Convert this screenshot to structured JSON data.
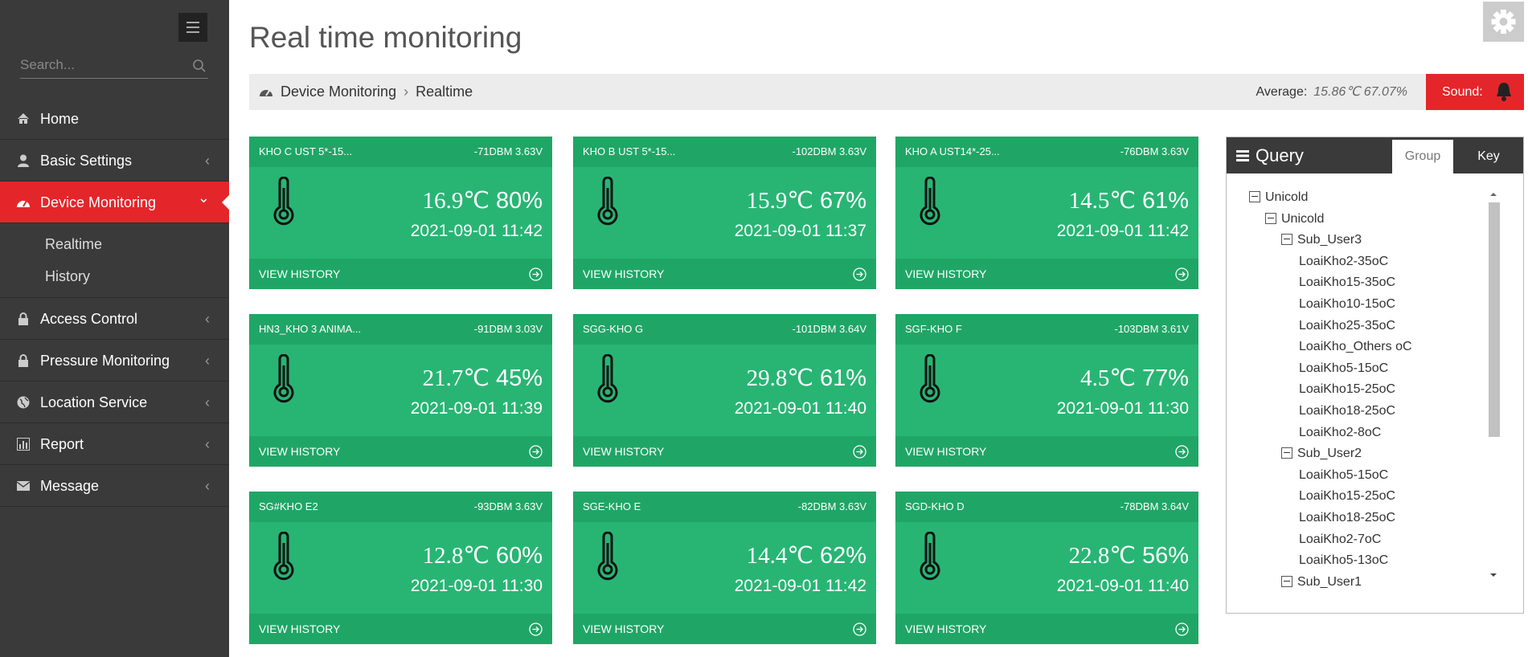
{
  "sidebar": {
    "search_placeholder": "Search...",
    "menu": [
      {
        "label": "Home",
        "icon": "home"
      },
      {
        "label": "Basic Settings",
        "icon": "user",
        "arrow": true
      },
      {
        "label": "Device Monitoring",
        "icon": "gauge",
        "active": true,
        "submenu": [
          "Realtime",
          "History"
        ]
      },
      {
        "label": "Access Control",
        "icon": "lock",
        "arrow": true
      },
      {
        "label": "Pressure Monitoring",
        "icon": "lock",
        "arrow": true
      },
      {
        "label": "Location Service",
        "icon": "globe",
        "arrow": true
      },
      {
        "label": "Report",
        "icon": "chart",
        "arrow": true
      },
      {
        "label": "Message",
        "icon": "mail",
        "arrow": true
      }
    ]
  },
  "header": {
    "title": "Real time monitoring"
  },
  "breadcrumb": {
    "items": [
      "Device Monitoring",
      "Realtime"
    ],
    "average_label": "Average:",
    "average_value": "15.86℃ 67.07%",
    "sound": "Sound:"
  },
  "cards": [
    {
      "name": "KHO C UST 5*-15...",
      "signal": "-71DBM 3.63V",
      "temp": "16.9℃",
      "humidity": "80%",
      "time": "2021-09-01 11:42",
      "link": "VIEW HISTORY"
    },
    {
      "name": "KHO B UST 5*-15...",
      "signal": "-102DBM 3.63V",
      "temp": "15.9℃",
      "humidity": "67%",
      "time": "2021-09-01 11:37",
      "link": "VIEW HISTORY"
    },
    {
      "name": "KHO A UST14*-25...",
      "signal": "-76DBM 3.63V",
      "temp": "14.5℃",
      "humidity": "61%",
      "time": "2021-09-01 11:42",
      "link": "VIEW HISTORY"
    },
    {
      "name": "HN3_KHO 3 ANIMA...",
      "signal": "-91DBM 3.03V",
      "temp": "21.7℃",
      "humidity": "45%",
      "time": "2021-09-01 11:39",
      "link": "VIEW HISTORY"
    },
    {
      "name": "SGG-KHO G",
      "signal": "-101DBM 3.64V",
      "temp": "29.8℃",
      "humidity": "61%",
      "time": "2021-09-01 11:40",
      "link": "VIEW HISTORY"
    },
    {
      "name": "SGF-KHO F",
      "signal": "-103DBM 3.61V",
      "temp": "4.5℃",
      "humidity": "77%",
      "time": "2021-09-01 11:30",
      "link": "VIEW HISTORY"
    },
    {
      "name": "SG#KHO E2",
      "signal": "-93DBM 3.63V",
      "temp": "12.8℃",
      "humidity": "60%",
      "time": "2021-09-01 11:30",
      "link": "VIEW HISTORY"
    },
    {
      "name": "SGE-KHO E",
      "signal": "-82DBM 3.63V",
      "temp": "14.4℃",
      "humidity": "62%",
      "time": "2021-09-01 11:42",
      "link": "VIEW HISTORY"
    },
    {
      "name": "SGD-KHO D",
      "signal": "-78DBM 3.64V",
      "temp": "22.8℃",
      "humidity": "56%",
      "time": "2021-09-01 11:40",
      "link": "VIEW HISTORY"
    }
  ],
  "query": {
    "title": "Query",
    "tabs": [
      "Group",
      "Key"
    ],
    "tree": {
      "label": "Unicold",
      "children": [
        {
          "label": "Unicold",
          "children": [
            {
              "label": "Sub_User3",
              "children": [
                {
                  "label": "LoaiKho2-35oC"
                },
                {
                  "label": "LoaiKho15-35oC"
                },
                {
                  "label": "LoaiKho10-15oC"
                },
                {
                  "label": "LoaiKho25-35oC"
                },
                {
                  "label": "LoaiKho_Others oC"
                },
                {
                  "label": "LoaiKho5-15oC"
                },
                {
                  "label": "LoaiKho15-25oC"
                },
                {
                  "label": "LoaiKho18-25oC"
                },
                {
                  "label": "LoaiKho2-8oC"
                }
              ]
            },
            {
              "label": "Sub_User2",
              "children": [
                {
                  "label": "LoaiKho5-15oC"
                },
                {
                  "label": "LoaiKho15-25oC"
                },
                {
                  "label": "LoaiKho18-25oC"
                },
                {
                  "label": "LoaiKho2-7oC"
                },
                {
                  "label": "LoaiKho5-13oC"
                }
              ]
            },
            {
              "label": "Sub_User1"
            }
          ]
        }
      ]
    }
  }
}
